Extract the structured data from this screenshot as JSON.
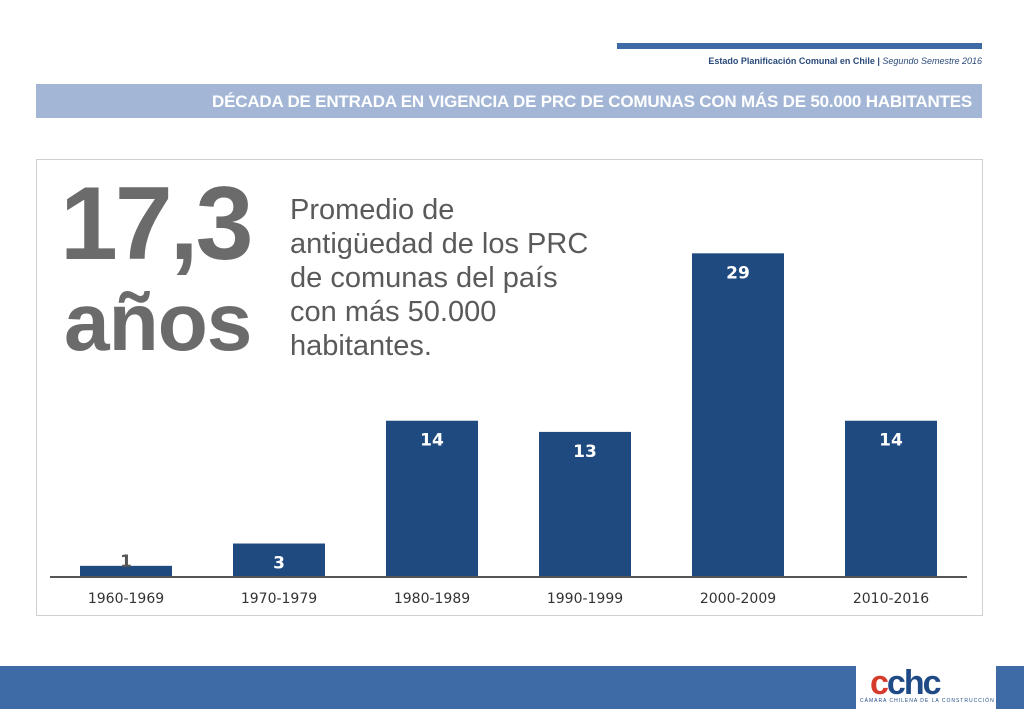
{
  "header": {
    "report_name": "Estado Planificación Comunal en Chile",
    "separator": "|",
    "period": "Segundo Semestre 2016"
  },
  "title": "DÉCADA DE ENTRADA EN VIGENCIA DE PRC DE COMUNAS CON MÁS DE 50.000 HABITANTES",
  "highlight": {
    "value": "17,3",
    "unit": "años",
    "text": "Promedio de antigüedad de los PRC de comunas del país con más 50.000 habitantes."
  },
  "chart_data": {
    "type": "bar",
    "categories": [
      "1960-1969",
      "1970-1979",
      "1980-1989",
      "1990-1999",
      "2000-2009",
      "2010-2016"
    ],
    "values": [
      1,
      3,
      14,
      13,
      29,
      14
    ],
    "title": "",
    "xlabel": "",
    "ylabel": "",
    "ylim": [
      0,
      31
    ],
    "grid": false,
    "legend": "none",
    "colors": {
      "bar": "#1f4a80",
      "label_inside": "#ffffff",
      "label_outside": "#555555",
      "axis": "#555555",
      "tick_label": "#333333"
    }
  },
  "footer": {
    "logo_text": "cchc",
    "logo_subtitle": "CÁMARA CHILENA DE LA CONSTRUCCIÓN",
    "colors": {
      "band": "#3e6aa6",
      "logo_blue": "#1f4a86",
      "logo_red": "#d63a2a"
    }
  }
}
